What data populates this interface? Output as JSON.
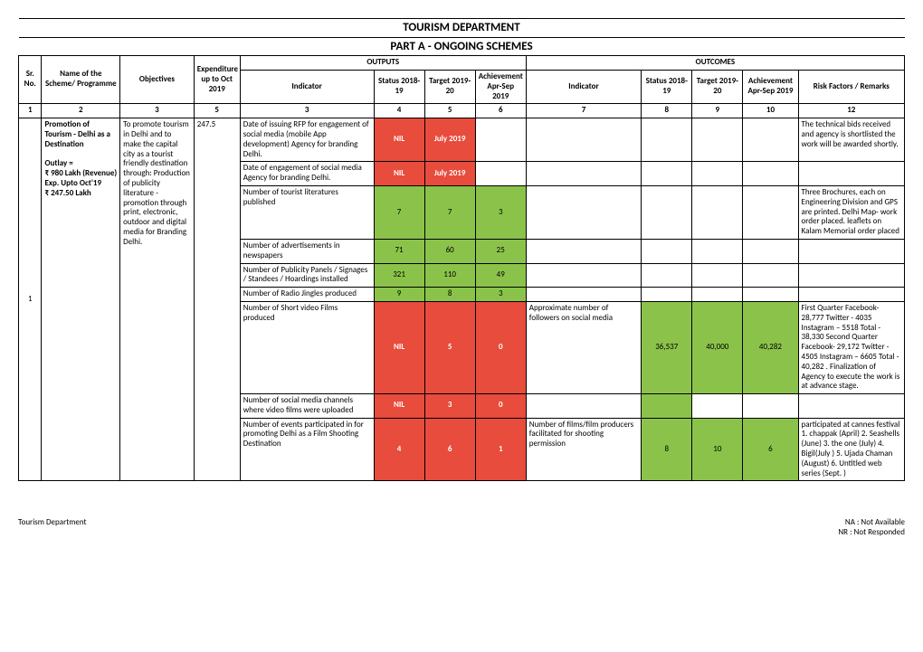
{
  "title1": "TOURISM DEPARTMENT",
  "title2": "PART A - ONGOING SCHEMES",
  "outputs_label": "OUTPUTS",
  "outcomes_label": "OUTCOMES",
  "headers": {
    "sr": "Sr. No.",
    "name": "Name of the Scheme/ Programme",
    "obj": "Objectives",
    "exp": "Expenditure up to Oct 2019",
    "ind": "Indicator",
    "status1819": "Status 2018-19",
    "target1920": "Target 2019-20",
    "ach_aprsep": "Achievement Apr-Sep 2019",
    "ind2": "Indicator",
    "status1819b": "Status 2018-19",
    "target1920b": "Target 2019-20",
    "ach_aprsepb": "Achievement Apr-Sep 2019",
    "risk": "Risk Factors / Remarks"
  },
  "numrow": [
    "1",
    "2",
    "3",
    "5",
    "3",
    "4",
    "5",
    "6",
    "7",
    "8",
    "9",
    "10",
    "12"
  ],
  "scheme": {
    "sr": "1",
    "name_top": "Promotion of Tourism - Delhi as a Destination",
    "name_outlay": "Outlay = ₹ 980 Lakh (Revenue) Exp. Upto Oct'19 ₹ 247.50 Lakh",
    "objectives": "To promote tourism in Delhi and to make the capital city as a tourist friendly destination through: Production of publicity  literature - promotion through print, electronic, outdoor and digital media for Branding Delhi.",
    "exp": "247.5"
  },
  "rows": [
    {
      "ind": "Date of issuing RFP for engagement of social media (mobile App development) Agency for branding Delhi.",
      "c4": "NIL",
      "c4c": "red",
      "c5": "July 2019",
      "c5c": "red",
      "c6": "",
      "c6c": "",
      "ind2": "",
      "c8": "",
      "c9": "",
      "c10": "",
      "risk": "The technical bids received and agency is  shortlisted the work will be awarded shortly."
    },
    {
      "ind": "Date of engagement of social media Agency for branding Delhi.",
      "c4": "NIL",
      "c4c": "red",
      "c5": "July 2019",
      "c5c": "red",
      "c6": "",
      "c6c": "",
      "ind2": "",
      "c8": "",
      "c9": "",
      "c10": "",
      "risk": ""
    },
    {
      "ind": "Number of tourist literatures published",
      "c4": "7",
      "c4c": "green",
      "c5": "7",
      "c5c": "green",
      "c6": "3",
      "c6c": "green",
      "ind2": "",
      "c8": "",
      "c9": "",
      "c10": "",
      "risk": "Three Brochures, each on Engineering Division and GPS are printed.  Delhi Map- work order placed. leaflets on Kalam Memorial order placed"
    },
    {
      "ind": "Number of advertisements in newspapers",
      "c4": "71",
      "c4c": "green",
      "c5": "60",
      "c5c": "green",
      "c6": "25",
      "c6c": "green",
      "ind2": "",
      "c8": "",
      "c9": "",
      "c10": "",
      "risk": ""
    },
    {
      "ind": "Number  of Publicity Panels  /  Signages / Standees / Hoardings  installed",
      "c4": "321",
      "c4c": "green",
      "c5": "110",
      "c5c": "green",
      "c6": "49",
      "c6c": "green",
      "ind2": "",
      "c8": "",
      "c9": "",
      "c10": "",
      "risk": ""
    },
    {
      "ind": "Number of Radio Jingles produced",
      "c4": "9",
      "c4c": "green",
      "c5": "8",
      "c5c": "green",
      "c6": "3",
      "c6c": "green",
      "ind2": "",
      "c8": "",
      "c9": "",
      "c10": "",
      "risk": ""
    },
    {
      "ind": "Number of Short video Films produced",
      "c4": "NIL",
      "c4c": "red",
      "c5": "5",
      "c5c": "red",
      "c6": "0",
      "c6c": "red",
      "ind2": "Approximate number of followers on social media",
      "c8": "36,537",
      "c8c": "green",
      "c9": "40,000",
      "c9c": "green",
      "c10": "40,282",
      "c10c": "green",
      "risk": "First Quarter Facebook- 28,777 Twitter - 4035 Instagram – 5518 Total - 38,330 Second Quarter Facebook- 29,172 Twitter - 4505 Instagram – 6605 Total - 40,282 . Finalization of Agency to execute the work is at advance stage."
    },
    {
      "ind": "Number of social media channels where video films were uploaded",
      "c4": "NIL",
      "c4c": "red",
      "c5": "3",
      "c5c": "red",
      "c6": "0",
      "c6c": "red",
      "ind2": "",
      "c8": "",
      "c8c": "green",
      "c9": "",
      "c10": "",
      "risk": ""
    },
    {
      "ind": "Number of events participated in for promoting Delhi as a Film Shooting Destination",
      "c4": "4",
      "c4c": "red",
      "c5": "6",
      "c5c": "red",
      "c6": "1",
      "c6c": "red",
      "ind2": "Number of films/film producers facilitated for shooting permission",
      "c8": "8",
      "c8c": "green",
      "c9": "10",
      "c9c": "green",
      "c10": "6",
      "c10c": "green",
      "risk": "participated at cannes festival 1. chappak (April) 2. Seashells (June) 3. the one (July) 4. Bigil(July ) 5. Ujada Chaman (August) 6. Untitled web series (Sept. )"
    }
  ],
  "footer_left": "Tourism Department",
  "footer_na": "NA : Not Available",
  "footer_nr": "NR : Not Responded"
}
